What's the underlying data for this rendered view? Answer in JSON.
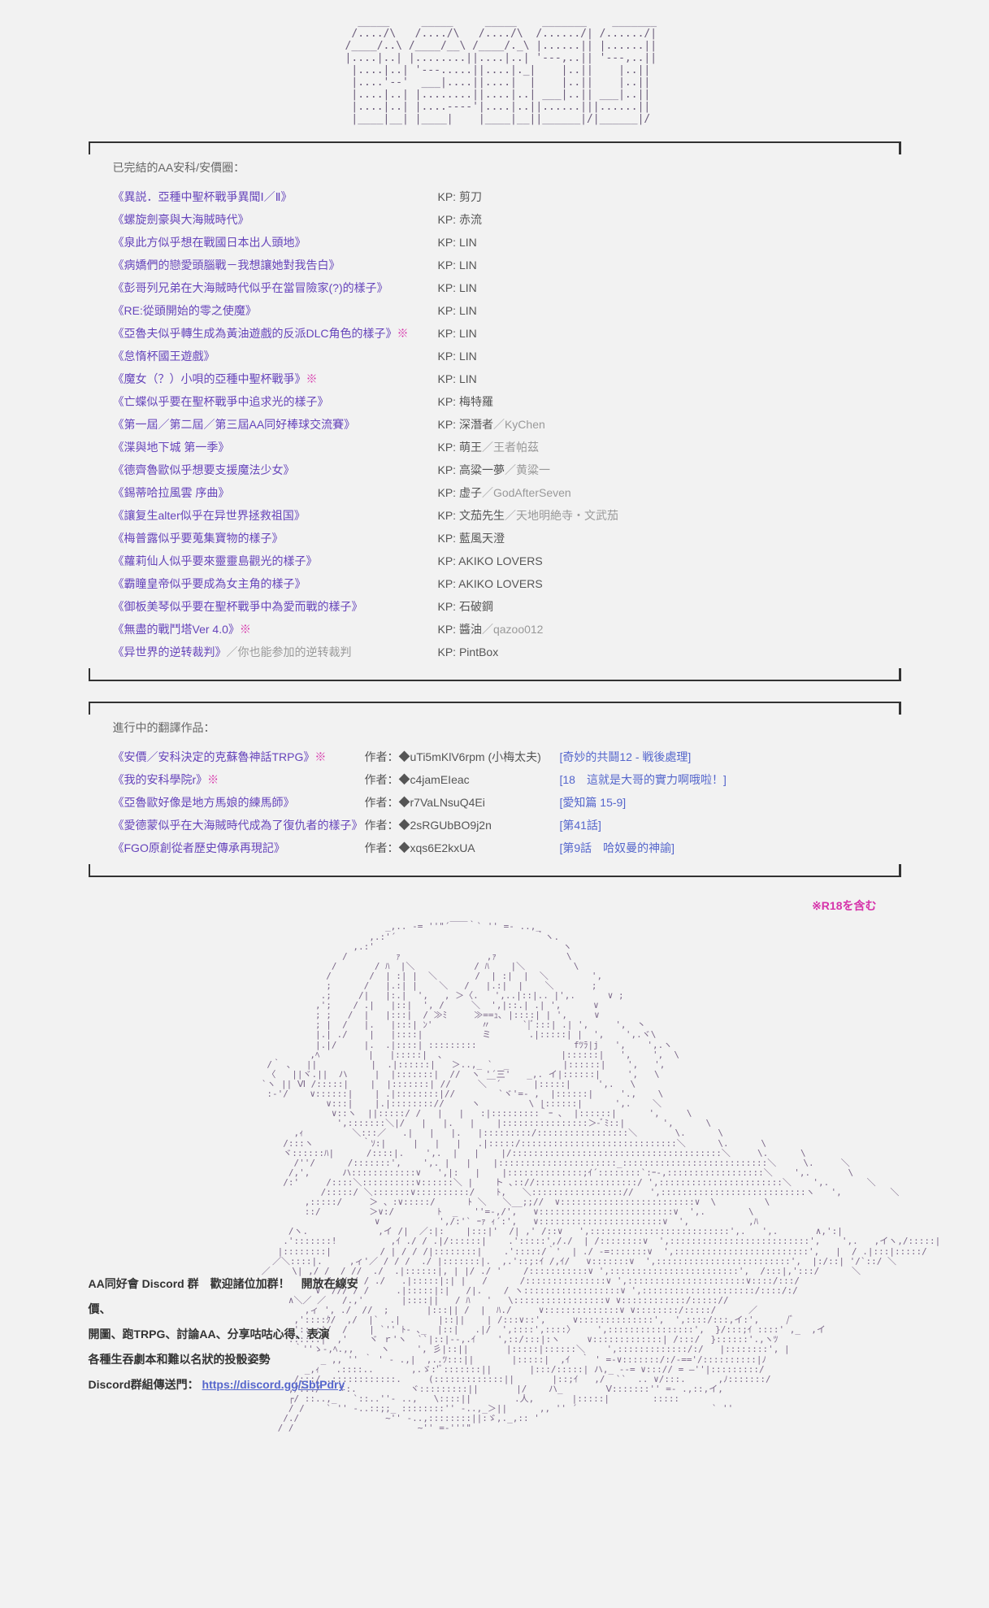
{
  "ascii_title": "    _____     _____     _____    _______    _______\n   /..../\\   /..../\\   /..../\\  /....../| /....../|\n  /____/..\\ /____/__\\ /____/._\\ |......|| |......||\n  |....|..| |........||....|..| '---,..|| '---,..||\n  |....|..| '---.....||....|._|    |..||    |..||\n  |....'--'  ___|....||....|  |    |..||    |..||\n  |....|..| |........||....|..| ___|..|| ___|..||\n  |....|..| |....----'|....|..||......|||......||\n  |____|__| |____|    |____|__||______|/|______|/",
  "section1_title": "已完結的AA安科/安價圈：",
  "completed_works": [
    {
      "title": "《異説．亞種中聖杯戰爭異聞Ⅰ／Ⅱ》",
      "kp": "剪刀",
      "sub": ""
    },
    {
      "title": "《螺旋劍豪與大海賊時代》",
      "kp": "赤流",
      "sub": ""
    },
    {
      "title": "《泉此方似乎想在戰國日本出人頭地》",
      "kp": "LIN",
      "sub": ""
    },
    {
      "title": "《病嬌們的戀愛頭腦戰－我想讓她對我告白》",
      "kp": "LIN",
      "sub": ""
    },
    {
      "title": "《彭哥列兄弟在大海賊時代似乎在當冒險家(?)的樣子》",
      "kp": "LIN",
      "sub": ""
    },
    {
      "title": "《RE:從頭開始的零之使魔》",
      "kp": "LIN",
      "sub": ""
    },
    {
      "title": "《亞魯夫似乎轉生成為黃油遊戲的反派DLC角色的樣子》<span class='mark-r18'>※</span>",
      "kp": "LIN",
      "sub": ""
    },
    {
      "title": "《怠惰杯國王遊戲》",
      "kp": "LIN",
      "sub": ""
    },
    {
      "title": "《魔女（？）小唄的亞種中聖杯戰爭》<span class='mark-r18'>※</span>",
      "kp": "LIN",
      "sub": ""
    },
    {
      "title": "《亡蝶似乎要在聖杯戰爭中追求光的樣子》",
      "kp": "梅特羅",
      "sub": ""
    },
    {
      "title": "《第一屆／第二屆／第三屆AA同好棒球交流賽》",
      "kp": "深潛者",
      "sub": "／KyChen"
    },
    {
      "title": "《渫與地下城 第一季》",
      "kp": "萌王",
      "sub": "／王者帕茲"
    },
    {
      "title": "《德齊魯歐似乎想要支援魔法少女》",
      "kp": "高粱一夢",
      "sub": "／黄粱一"
    },
    {
      "title": "《錫蒂哈拉風雲 序曲》",
      "kp": "虚子",
      "sub": "／GodAfterSeven"
    },
    {
      "title": "《讓复生alter似乎在异世界拯救祖国》",
      "kp": "文茄先生",
      "sub": "／天地明絶寺・文武茄"
    },
    {
      "title": "《梅普露似乎要蒐集寶物的樣子》",
      "kp": "藍風天澄",
      "sub": ""
    },
    {
      "title": "《蘿莉仙人似乎要來靈靈島觀光的樣子》",
      "kp": "AKIKO LOVERS",
      "sub": ""
    },
    {
      "title": "《霸瞳皇帝似乎要成為女主角的樣子》",
      "kp": "AKIKO LOVERS",
      "sub": ""
    },
    {
      "title": "《御板美琴似乎要在聖杯戰爭中為愛而戰的樣子》",
      "kp": "石破鋼",
      "sub": ""
    },
    {
      "title": "《無盡的戰鬥塔Ver 4.0》<span class='mark-r18'>※</span>",
      "kp": "醬油",
      "sub": "／qazoo012"
    },
    {
      "title": "《异世界的逆转裁判》<span class='entry-sub'>／你也能参加的逆转裁判</span>",
      "kp": "PintBox",
      "sub": ""
    }
  ],
  "section2_title": "進行中的翻譯作品：",
  "trans_works": [
    {
      "title": "《安價／安科決定的克蘇魯神話TRPG》<span class='mark-r18'>※</span>",
      "author": "作者：◆uTi5mKlV6rpm (小梅太夫)",
      "link": "[奇妙的共鬪12 - 戦後處理]"
    },
    {
      "title": "《我的安科學院r》<span class='mark-r18'>※</span>",
      "author": "作者：◆c4jamEIeac",
      "link": "[18　這就是大哥的實力啊哦啦！]"
    },
    {
      "title": "《亞魯歐好像是地方馬娘的練馬師》",
      "author": "作者：◆r7VaLNsuQ4Ei",
      "link": "[愛知篇 15-9]"
    },
    {
      "title": "《愛德蒙似乎在大海賊時代成為了復仇者的樣子》",
      "author": "作者：◆2sRGUbBO9j2n",
      "link": "[第41話]"
    },
    {
      "title": "《FGO原創從者歷史傳承再現記》",
      "author": "作者：◆xqs6E2kxUA",
      "link": "[第9話　哈奴曼的神諭]"
    }
  ],
  "r18_note": "※R18を含む",
  "discord_text1": "AA同好會 Discord 群　歡迎諸位加群！　開放在線安價、",
  "discord_text2": "開圖、跑TRPG、討論AA、分享咕咕心得、表演",
  "discord_text3": "各種生吞劇本和難以名狀的投骰姿勢",
  "discord_text4": "Discord群組傳送門：",
  "discord_url": "https://discord.gg/SbtPdry",
  "ascii_art": "                         _,.. -= ''\"´￣￣｀` '' =- ..,_\n                      ,.:'´                          ｀ヽ.\n                   ,.:'                                   ヽ\n                 /         ｧ                ,ｧ             \\\n               /       / ﾊ  |＼           / ﾊ    |＼         \\\n              /       /  | :| |  ＼       /  | :|  |  ＼        ',\n              ;      /   |.:| |    ＼   /   |.:|  |    ＼       ;\n             .;     /|   |:.|  ',   , ＞〈.   ',..|::|.. |',.      ∨ ;\n            ,';    / .|   |::|  ', /     ＼  ',|::.| .| ',      ∨\n            ; ;   /  |   |:::|  / ≫ﾐ     ≫==ｭ､ |::::| | ',     ∨\n            ; |  /   |.   |:::| ﾝ'         〃      `|ﾞ:::| .| ',     ',  丶\n            |.| ./    |   |::::|           ミ       .|:::::| |  ',    ',.ヾ\\\n            |.|/     |.  .|::::| :::::::::                  fﾂﾗ|j   ',    ',.ヽ\n           ,ﾍ         |   |:::::|  ､                      |::::::|   ',    ',  \\\n   /｀ 、  ||          |  .|::::::|   ＞..,_ `  _          |::::::|    ',   ',\n   〈   ||ヾ.||  ハ     |  |:::::::|  //  ヽ '´三'   _,. イ|::::::|     ',   \\\n  `ヽ || Ⅵ /:::::|    |  |:::::::| //     ＼￣´      |:::::|     ',.   \\\n   :-'/    ∨::::::|    | .|::::::::|//        `ヾ'=- ,  |::::::|     '.,    \\\n              ∨:::|    |.|:::::::://     ヽ         \\ |::::::|      ',.    ＼\n               ∨::ヽ  ||:::::/ /   |   |   :|:::::::::｀ｰ ､  |::::::|      ',     \\\n                ',:::::::＼|/   |   |.   |    |::::::::::::::::＞-ﾞﾐ::|       ',      \\\n        ,ｨ         ＼:::／   .|   |   |.   |:::::::::/:::::::::::::::::＼       \\.      \\\n      /:::ヽ         ｀ｿ:|     |   |   |   .|:::::/:::::::::::::::::::::::::::::＼      \\.      \\\n      ヾ::::::ﾊ|      /::::|.    ',.  |   |    |/:::::::::::::::::::::::::::::::::::::::＼     \\.      \\\n        /''/      /:::::::',    ',. |   |    |::::::::::::::::::::::_:::::::::::::::::::::::::::＼     \\.     ＼\n       /,',      ハ::::::::::::∨   ',|:   |    |::::::::::::::;ｲ´::::::::`:ｰ-,::::::::::::::::::＼    ',.       \\\n      /:'     /::::＼::::::::::∨::::::＼ |    ト ､:://:::::::::::::::::::/ ',:::::::::::::::::::::::＼    ',.       ＼\n             /:::::/ ＼:::::::∨::::::::::/    ﾄ,   ＼::::::::::::::::://   ',:::::::::::::::::::::::::::ヽ   ',         ＼\n          ,:::::/     ＞ 、:∨:::::/      ﾄ ＼   ＼__;;//  ∨:::::::::::::::::::::::::∨  \\         \\\n          ::/         ＞∨:/        ﾄ  _   ''=-,/',   ∨:::::::::::::::::::::::::∨  ',.        \\\n                       ∨           ',/:'` ｰｧ ｨ´:',   ∨:::::::::::::::::::::::∨  ',           ,ﾊ\n       /ヽ.             ,イ /|  ／:|:    |:::|'  /| ,' /::∨   ',::::::::::::::::::::::::::',.   ',.       ∧,':|\n      .':::::::!          ,ｲ ./ / .|/::::::|    .':::::',/./  | /::::::::∨  ',::::::::::::::::::::::::::',    ',.   ,イヽ,/:::::|\n     |::::::::|         / | / / /|::::::::|    .':::::/｀'  | ./ -=:::::::∨  ',:::::::::::::::::::::::::',   |  / .|:::|:::::/\n    ／＼::::|.     ,ィ'／ / / /  ./ |:::::::|.  ,.'::;:ｲ /,ｲ/   ∨:::::::∨  ',:::::::::::::::::::::::::',  |:/::| '/`::/ ＼\n  ／    \\| ,/ /  / //  ./  .|::::::|, | |/ ./ '    /:::::::::::∨ ',::::::::::::::::::::::::',  /:::|,':::/      ＼\n            ∨ /: / / / ./   .|:::::|:| |   /      /:::::::::::::::∨ ',::::::::::::::::::::::∨::::/:::/\n            ∨  /// / /     .|:::::|:|   /|.    / ヽ::::::::::::::::::∨ ',:::::::::::::::::::::/::::/:/\n       ∧＼／ ／   /.,'       |::::||   / ﾊ   '   \\:::::::::::::::::∨ ∨::::::::::::/::::://\n          ,ィ ', ./  //  ;       |:::|| /  |  ﾊ./     ∨::::::::::::::∨ ∨::::::::/:::::/      ／\n        ,'::::ｸ/  ,/  |`  .|       |::||    | /:::∨::',     ∨::::::::::::::',  ',::::/:::,イ:',     /ﾞ\n        ':::;'/  /    | `'' ﾄ- ､_  |::|   .|/  ',::::',::::〉    ',::::::::::::::::',  }/:::;ｲ ::::' ,_  ,イ\n       ::::::|  ,'    ヾ ｒ'ヽ  ``|::|--,.ｲ    ',::/:::|:ヽ     ∨:::::::::::::| /:::/  }::::::'.,ヽﾂ\n        ｀''ゝ-,ﾍ.,,     ヽ     ', 彡|::||       |:::::|::::::＼    ',:::::::::::::/:/   |::::::::', |\n             _ ,, '' ｀ ' - .,|  ,..ﾂ:::||       |:::::|  ,ｲ  ｀ ' =-∨:::::::/:/-=='/::::::::::|ﾉ\n          _,ｨ   .::::..       ,.ゞ:'ﾞ:::::::||       |:::/:::::| ハ,_ --= ∨:::// = ―''|:::::::::/\n        /:::/ .::::::::::::.     (:::::::::::::||       |::;ｲ   ,/  ``  .. ∨/:::.      ,ﾉ:::::::/\n       ,/:::/   ヾ:.          ヾ:::::::::||       |/    ハ_        Ⅴ:::::::'' =- .,::,イ,\n       ┌/ ::..,_   `::..''- ..,   \\::::||        .人,       |:::::|        :::::\n       / /    ` '' -..::;;_ ::::::::'' -..,_＞||      ,, '' ´                         ` ''\n      /./                ~'' -..,::::::::||:ゞ,._,:: '\n     / /                       ~'' =-'''\"",
  "colors": {
    "bg": "#f2f2f2",
    "text": "#333",
    "link": "#6644bb",
    "gray": "#999",
    "r18": "#d633aa",
    "trans_link": "#5566cc",
    "ascii": "#7a6688"
  }
}
